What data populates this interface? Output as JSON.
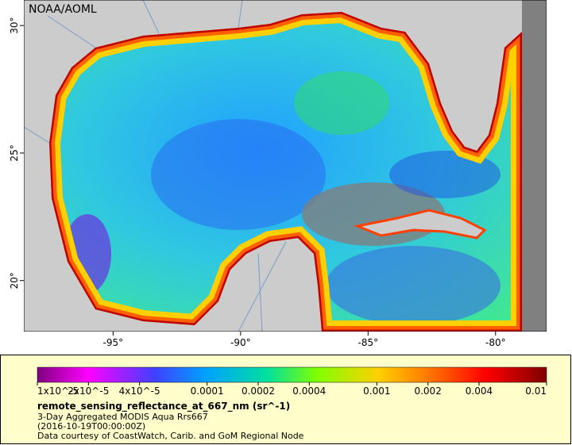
{
  "map": {
    "title": "NOAA/AOML",
    "lon_range": [
      -98.5,
      -78
    ],
    "lat_range": [
      18,
      31
    ],
    "lon_ticks": [
      {
        "value": -95,
        "label": "-95°"
      },
      {
        "value": -90,
        "label": "-90°"
      },
      {
        "value": -85,
        "label": "-85°"
      },
      {
        "value": -80,
        "label": "-80°"
      }
    ],
    "lat_ticks": [
      {
        "value": 20,
        "label": "20°"
      },
      {
        "value": 25,
        "label": "25°"
      },
      {
        "value": 30,
        "label": "30°"
      }
    ]
  },
  "colorbar": {
    "range": [
      1e-05,
      0.01
    ],
    "log_scale": true,
    "ticks": [
      {
        "value": 1e-05,
        "label": "1x10^-5"
      },
      {
        "value": 2e-05,
        "label": "2x10^-5"
      },
      {
        "value": 4e-05,
        "label": "4x10^-5"
      },
      0.0001,
      0.0002,
      0.0004,
      0.001,
      0.002,
      0.004,
      0.01
    ],
    "variable": "remote_sensing_reflectance_at_667_nm (sr^-1)",
    "caption": [
      "3-Day Aggregated MODIS Aqua Rrs667",
      "(2016-10-19T00:00:00Z)",
      "Data courtesy of CoastWatch, Carib. and GoM Regional Node"
    ]
  }
}
